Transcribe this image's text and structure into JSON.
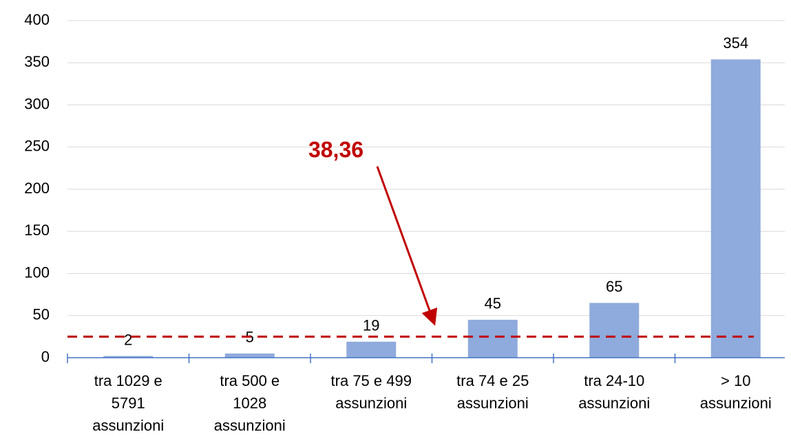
{
  "chart_data": {
    "type": "bar",
    "categories": [
      "tra 1029 e\n5791\nassunzioni",
      "tra 500 e\n1028\nassunzioni",
      "tra 75 e 499\nassunzioni",
      "tra 74 e 25\nassunzioni",
      "tra 24-10\nassunzioni",
      "> 10\nassunzioni"
    ],
    "values": [
      2,
      5,
      19,
      45,
      65,
      354
    ],
    "color": "#8faadc",
    "ylim": [
      0,
      400
    ],
    "yticks": [
      0,
      50,
      100,
      150,
      200,
      250,
      300,
      350,
      400
    ],
    "grid": true,
    "reference_line": {
      "value": 25,
      "color": "#c00000"
    },
    "annotation": "38,36"
  }
}
